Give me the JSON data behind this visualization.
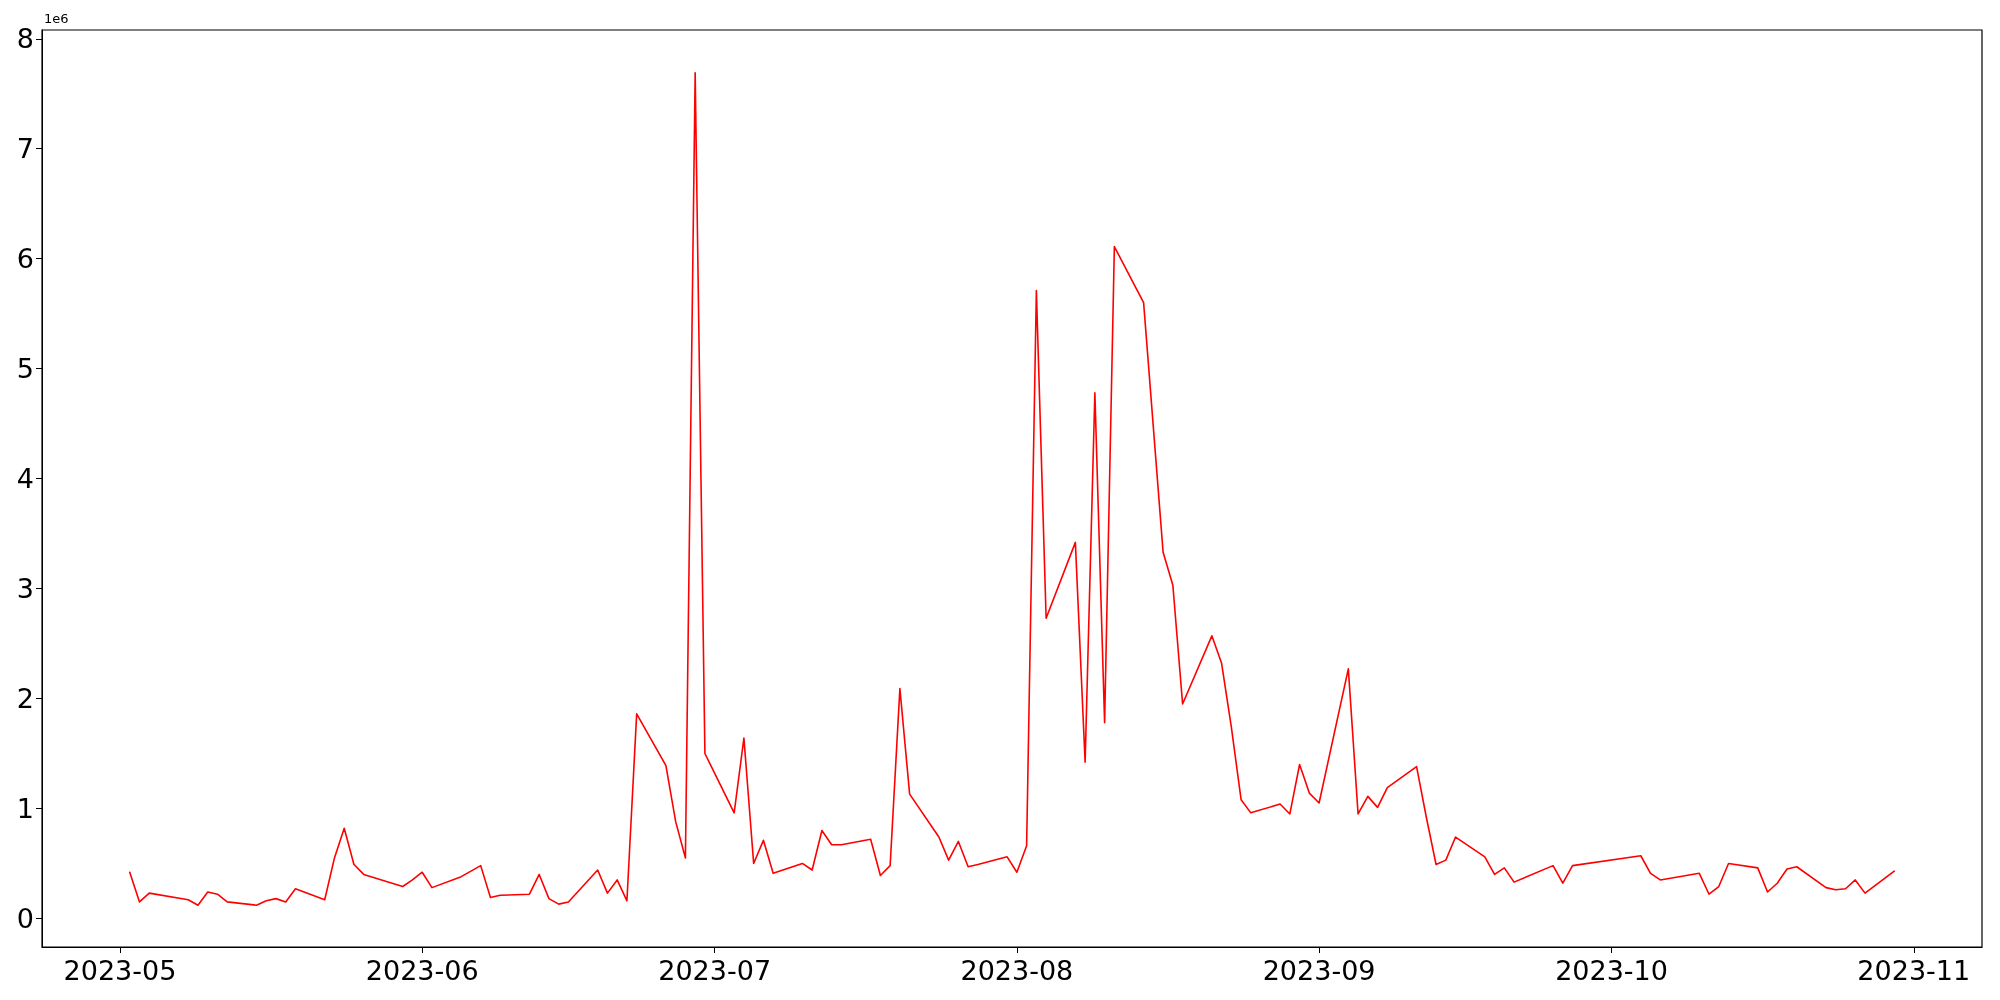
{
  "chart_data": {
    "type": "line",
    "annotations": [
      "1e6"
    ],
    "x": [
      "2023-05-02",
      "2023-05-03",
      "2023-05-04",
      "2023-05-08",
      "2023-05-09",
      "2023-05-10",
      "2023-05-11",
      "2023-05-12",
      "2023-05-15",
      "2023-05-16",
      "2023-05-17",
      "2023-05-18",
      "2023-05-19",
      "2023-05-22",
      "2023-05-23",
      "2023-05-24",
      "2023-05-25",
      "2023-05-26",
      "2023-05-30",
      "2023-05-31",
      "2023-06-01",
      "2023-06-02",
      "2023-06-05",
      "2023-06-07",
      "2023-06-08",
      "2023-06-09",
      "2023-06-12",
      "2023-06-13",
      "2023-06-14",
      "2023-06-15",
      "2023-06-16",
      "2023-06-19",
      "2023-06-20",
      "2023-06-21",
      "2023-06-22",
      "2023-06-23",
      "2023-06-26",
      "2023-06-27",
      "2023-06-28",
      "2023-06-29",
      "2023-06-30",
      "2023-07-03",
      "2023-07-04",
      "2023-07-05",
      "2023-07-06",
      "2023-07-07",
      "2023-07-10",
      "2023-07-11",
      "2023-07-12",
      "2023-07-13",
      "2023-07-14",
      "2023-07-17",
      "2023-07-18",
      "2023-07-19",
      "2023-07-20",
      "2023-07-21",
      "2023-07-24",
      "2023-07-25",
      "2023-07-26",
      "2023-07-27",
      "2023-07-28",
      "2023-07-31",
      "2023-08-01",
      "2023-08-02",
      "2023-08-03",
      "2023-08-04",
      "2023-08-07",
      "2023-08-08",
      "2023-08-09",
      "2023-08-10",
      "2023-08-11",
      "2023-08-14",
      "2023-08-16",
      "2023-08-17",
      "2023-08-18",
      "2023-08-21",
      "2023-08-22",
      "2023-08-23",
      "2023-08-24",
      "2023-08-25",
      "2023-08-28",
      "2023-08-29",
      "2023-08-30",
      "2023-08-31",
      "2023-09-01",
      "2023-09-04",
      "2023-09-05",
      "2023-09-06",
      "2023-09-07",
      "2023-09-08",
      "2023-09-11",
      "2023-09-12",
      "2023-09-13",
      "2023-09-14",
      "2023-09-15",
      "2023-09-18",
      "2023-09-19",
      "2023-09-20",
      "2023-09-21",
      "2023-09-25",
      "2023-09-26",
      "2023-09-27",
      "2023-10-04",
      "2023-10-05",
      "2023-10-06",
      "2023-10-10",
      "2023-10-11",
      "2023-10-12",
      "2023-10-13",
      "2023-10-16",
      "2023-10-17",
      "2023-10-18",
      "2023-10-19",
      "2023-10-20",
      "2023-10-23",
      "2023-10-24",
      "2023-10-25",
      "2023-10-26",
      "2023-10-27",
      "2023-10-30"
    ],
    "series": [
      {
        "color": "#ff0000",
        "values": [
          0.42,
          0.15,
          0.23,
          0.17,
          0.12,
          0.24,
          0.22,
          0.15,
          0.12,
          0.16,
          0.18,
          0.15,
          0.27,
          0.17,
          0.55,
          0.82,
          0.49,
          0.4,
          0.29,
          0.35,
          0.42,
          0.28,
          0.38,
          0.48,
          0.19,
          0.21,
          0.22,
          0.4,
          0.18,
          0.13,
          0.15,
          0.44,
          0.23,
          0.35,
          0.16,
          1.86,
          1.39,
          0.88,
          0.55,
          7.69,
          1.5,
          0.96,
          1.64,
          0.5,
          0.71,
          0.41,
          0.5,
          0.44,
          0.8,
          0.67,
          0.67,
          0.72,
          0.39,
          0.48,
          2.09,
          1.13,
          0.74,
          0.53,
          0.7,
          0.47,
          0.49,
          0.56,
          0.42,
          0.66,
          5.71,
          2.73,
          3.42,
          1.42,
          4.78,
          1.78,
          6.11,
          5.6,
          3.33,
          3.03,
          1.95,
          2.57,
          2.32,
          1.74,
          1.08,
          0.96,
          1.04,
          0.95,
          1.4,
          1.14,
          1.05,
          2.27,
          0.95,
          1.11,
          1.01,
          1.19,
          1.38,
          0.92,
          0.49,
          0.53,
          0.74,
          0.56,
          0.4,
          0.46,
          0.33,
          0.48,
          0.32,
          0.48,
          0.57,
          0.41,
          0.35,
          0.41,
          0.22,
          0.29,
          0.5,
          0.46,
          0.24,
          0.32,
          0.45,
          0.47,
          0.28,
          0.26,
          0.27,
          0.35,
          0.23,
          0.43
        ]
      }
    ],
    "xlim": [
      "2023-04-23",
      "2023-11-08"
    ],
    "xticks": [
      "2023-05",
      "2023-06",
      "2023-07",
      "2023-08",
      "2023-09",
      "2023-10",
      "2023-11"
    ],
    "ylim": [
      -0.26,
      8.08
    ],
    "yticks": [
      0,
      1,
      2,
      3,
      4,
      5,
      6,
      7,
      8
    ],
    "marker": "none",
    "line_style": "solid"
  }
}
